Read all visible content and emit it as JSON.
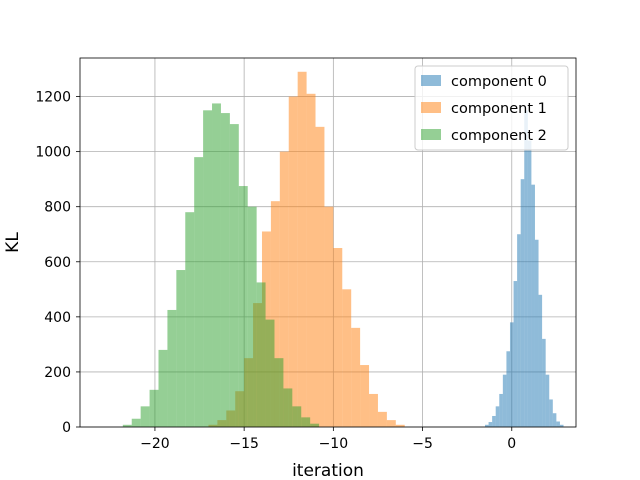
{
  "chart_data": {
    "type": "bar",
    "subtype": "overlapping-histogram",
    "xlabel": "iteration",
    "ylabel": "KL",
    "xlim": [
      -24.2,
      3.6
    ],
    "ylim": [
      0,
      1340
    ],
    "xticks": [
      -20,
      -15,
      -10,
      -5,
      0
    ],
    "yticks": [
      0,
      200,
      400,
      600,
      800,
      1000,
      1200
    ],
    "grid": true,
    "legend_position": "top-right",
    "colors": {
      "axis": "#000000",
      "grid": "#b0b0b0"
    },
    "series": [
      {
        "name": "component 0",
        "color": "#1f77b4",
        "alpha": 0.5,
        "bins": [
          {
            "x0": -1.5,
            "x1": -1.3,
            "value": 8
          },
          {
            "x0": -1.3,
            "x1": -1.1,
            "value": 18
          },
          {
            "x0": -1.1,
            "x1": -0.9,
            "value": 40
          },
          {
            "x0": -0.9,
            "x1": -0.7,
            "value": 75
          },
          {
            "x0": -0.7,
            "x1": -0.5,
            "value": 120
          },
          {
            "x0": -0.5,
            "x1": -0.3,
            "value": 190
          },
          {
            "x0": -0.3,
            "x1": -0.1,
            "value": 275
          },
          {
            "x0": -0.1,
            "x1": 0.1,
            "value": 380
          },
          {
            "x0": 0.1,
            "x1": 0.3,
            "value": 530
          },
          {
            "x0": 0.3,
            "x1": 0.5,
            "value": 700
          },
          {
            "x0": 0.5,
            "x1": 0.7,
            "value": 900
          },
          {
            "x0": 0.7,
            "x1": 0.9,
            "value": 1150
          },
          {
            "x0": 0.9,
            "x1": 1.1,
            "value": 1040
          },
          {
            "x0": 1.1,
            "x1": 1.3,
            "value": 880
          },
          {
            "x0": 1.3,
            "x1": 1.5,
            "value": 680
          },
          {
            "x0": 1.5,
            "x1": 1.7,
            "value": 480
          },
          {
            "x0": 1.7,
            "x1": 1.9,
            "value": 320
          },
          {
            "x0": 1.9,
            "x1": 2.1,
            "value": 190
          },
          {
            "x0": 2.1,
            "x1": 2.3,
            "value": 100
          },
          {
            "x0": 2.3,
            "x1": 2.5,
            "value": 50
          },
          {
            "x0": 2.5,
            "x1": 2.7,
            "value": 20
          },
          {
            "x0": 2.7,
            "x1": 2.9,
            "value": 8
          }
        ]
      },
      {
        "name": "component 1",
        "color": "#ff7f0e",
        "alpha": 0.5,
        "bins": [
          {
            "x0": -17.0,
            "x1": -16.5,
            "value": 8
          },
          {
            "x0": -16.5,
            "x1": -16.0,
            "value": 25
          },
          {
            "x0": -16.0,
            "x1": -15.5,
            "value": 60
          },
          {
            "x0": -15.5,
            "x1": -15.0,
            "value": 130
          },
          {
            "x0": -15.0,
            "x1": -14.5,
            "value": 250
          },
          {
            "x0": -14.5,
            "x1": -14.0,
            "value": 450
          },
          {
            "x0": -14.0,
            "x1": -13.5,
            "value": 710
          },
          {
            "x0": -13.5,
            "x1": -13.0,
            "value": 820
          },
          {
            "x0": -13.0,
            "x1": -12.5,
            "value": 1000
          },
          {
            "x0": -12.5,
            "x1": -12.0,
            "value": 1200
          },
          {
            "x0": -12.0,
            "x1": -11.5,
            "value": 1290
          },
          {
            "x0": -11.5,
            "x1": -11.0,
            "value": 1210
          },
          {
            "x0": -11.0,
            "x1": -10.5,
            "value": 1090
          },
          {
            "x0": -10.5,
            "x1": -10.0,
            "value": 800
          },
          {
            "x0": -10.0,
            "x1": -9.5,
            "value": 650
          },
          {
            "x0": -9.5,
            "x1": -9.0,
            "value": 500
          },
          {
            "x0": -9.0,
            "x1": -8.5,
            "value": 360
          },
          {
            "x0": -8.5,
            "x1": -8.0,
            "value": 225
          },
          {
            "x0": -8.0,
            "x1": -7.5,
            "value": 120
          },
          {
            "x0": -7.5,
            "x1": -7.0,
            "value": 55
          },
          {
            "x0": -7.0,
            "x1": -6.5,
            "value": 25
          },
          {
            "x0": -6.5,
            "x1": -6.0,
            "value": 8
          }
        ]
      },
      {
        "name": "component 2",
        "color": "#2ca02c",
        "alpha": 0.5,
        "bins": [
          {
            "x0": -21.8,
            "x1": -21.3,
            "value": 8
          },
          {
            "x0": -21.3,
            "x1": -20.8,
            "value": 30
          },
          {
            "x0": -20.8,
            "x1": -20.3,
            "value": 75
          },
          {
            "x0": -20.3,
            "x1": -19.8,
            "value": 135
          },
          {
            "x0": -19.8,
            "x1": -19.3,
            "value": 280
          },
          {
            "x0": -19.3,
            "x1": -18.8,
            "value": 425
          },
          {
            "x0": -18.8,
            "x1": -18.3,
            "value": 570
          },
          {
            "x0": -18.3,
            "x1": -17.8,
            "value": 780
          },
          {
            "x0": -17.8,
            "x1": -17.3,
            "value": 980
          },
          {
            "x0": -17.3,
            "x1": -16.8,
            "value": 1150
          },
          {
            "x0": -16.8,
            "x1": -16.3,
            "value": 1175
          },
          {
            "x0": -16.3,
            "x1": -15.8,
            "value": 1140
          },
          {
            "x0": -15.8,
            "x1": -15.3,
            "value": 1100
          },
          {
            "x0": -15.3,
            "x1": -14.8,
            "value": 875
          },
          {
            "x0": -14.8,
            "x1": -14.3,
            "value": 800
          },
          {
            "x0": -14.3,
            "x1": -13.8,
            "value": 525
          },
          {
            "x0": -13.8,
            "x1": -13.3,
            "value": 390
          },
          {
            "x0": -13.3,
            "x1": -12.8,
            "value": 250
          },
          {
            "x0": -12.8,
            "x1": -12.3,
            "value": 140
          },
          {
            "x0": -12.3,
            "x1": -11.8,
            "value": 75
          },
          {
            "x0": -11.8,
            "x1": -11.3,
            "value": 35
          },
          {
            "x0": -11.3,
            "x1": -10.8,
            "value": 12
          }
        ]
      }
    ]
  }
}
